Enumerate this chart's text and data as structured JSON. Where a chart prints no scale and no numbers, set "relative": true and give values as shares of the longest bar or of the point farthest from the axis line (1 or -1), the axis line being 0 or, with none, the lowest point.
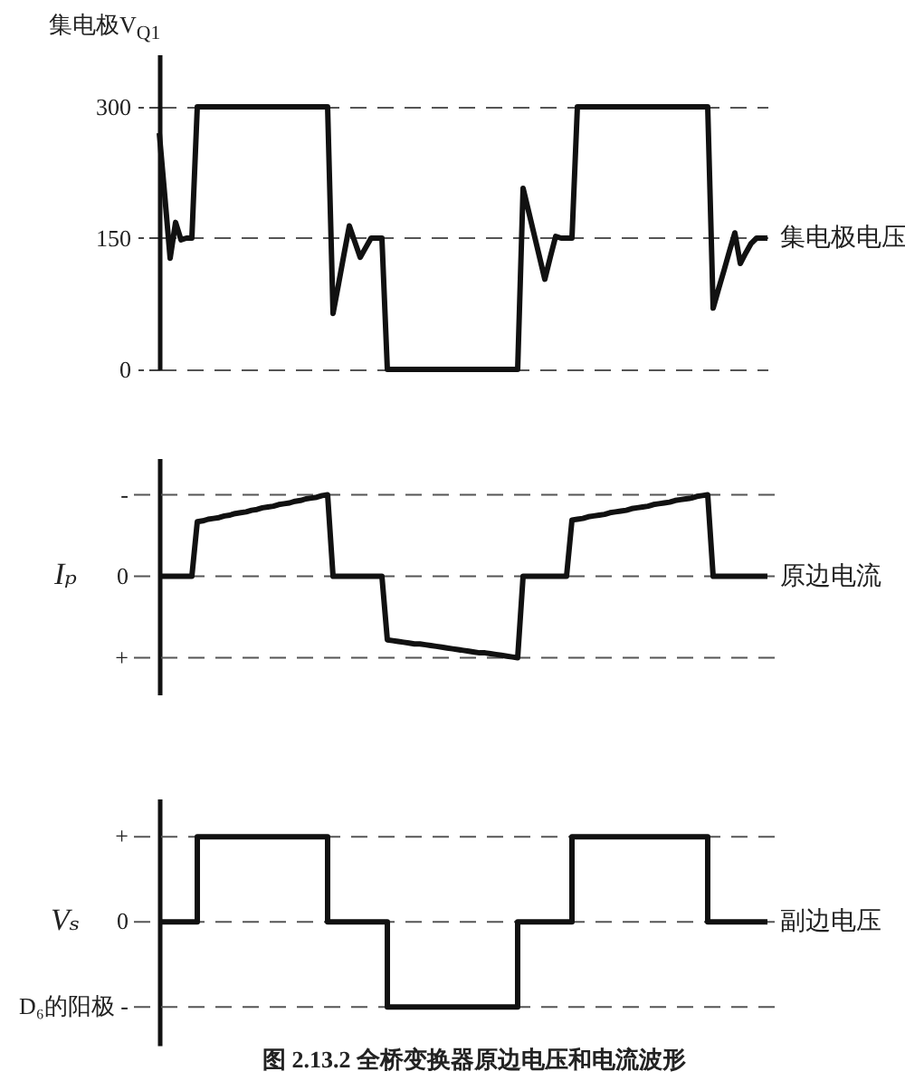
{
  "chart_data": [
    {
      "type": "line",
      "ylabel": "集电极V$_{Q1}$",
      "categories": [
        null,
        null,
        null,
        null,
        null,
        null,
        null,
        null,
        null,
        null,
        null,
        null,
        null,
        null,
        null,
        null,
        null,
        null,
        null,
        null,
        null,
        null,
        null,
        null,
        null,
        null,
        null,
        null,
        null,
        null,
        null,
        null,
        null,
        null,
        null,
        null,
        null,
        null,
        null,
        null,
        null,
        null,
        null,
        null,
        null,
        null,
        null,
        null,
        null,
        null,
        null,
        null,
        null,
        null,
        null,
        null,
        null,
        null,
        null,
        null,
        null,
        null,
        null,
        null,
        null,
        null,
        null,
        null,
        null,
        null,
        null,
        null,
        null,
        null,
        null,
        null,
        null,
        null,
        null,
        null,
        null,
        null,
        null,
        null,
        null,
        null,
        null,
        null,
        null,
        null,
        null,
        null,
        null,
        null,
        null,
        null,
        null,
        null,
        null,
        null,
        null,
        null,
        null,
        null,
        null,
        null,
        null,
        null,
        null,
        null,
        null,
        null,
        null
      ],
      "series": [
        {
          "name": "集电极电压",
          "color": "#111111",
          "values": [
            270,
            199,
            127,
            168,
            148,
            150,
            150,
            300,
            300,
            300,
            300,
            300,
            300,
            300,
            300,
            300,
            300,
            300,
            300,
            300,
            300,
            300,
            300,
            300,
            300,
            300,
            300,
            300,
            300,
            300,
            300,
            300,
            64,
            97,
            131,
            164,
            146,
            128,
            139,
            150,
            150,
            150,
            0,
            0,
            0,
            0,
            0,
            0,
            0,
            0,
            0,
            0,
            0,
            0,
            0,
            0,
            0,
            0,
            0,
            0,
            0,
            0,
            0,
            0,
            0,
            0,
            0,
            207,
            181,
            155,
            129,
            103,
            128,
            152,
            150,
            150,
            150,
            300,
            300,
            300,
            300,
            300,
            300,
            300,
            300,
            300,
            300,
            300,
            300,
            300,
            300,
            300,
            300,
            300,
            300,
            300,
            300,
            300,
            300,
            300,
            300,
            300,
            70,
            92,
            113,
            135,
            156,
            121,
            133,
            144,
            150,
            150,
            150
          ]
        }
      ],
      "ylim": [
        0,
        360
      ],
      "yticks": [
        0,
        150,
        300
      ],
      "grid": "y",
      "tick_labels": "y"
    },
    {
      "type": "line",
      "relative": true,
      "ylabel": "Iₚ",
      "categories": [
        null,
        null,
        null,
        null,
        null,
        null,
        null,
        null,
        null,
        null,
        null,
        null,
        null,
        null,
        null,
        null,
        null,
        null,
        null,
        null,
        null,
        null,
        null,
        null,
        null,
        null,
        null,
        null,
        null,
        null,
        null,
        null,
        null,
        null,
        null,
        null,
        null,
        null,
        null,
        null,
        null,
        null,
        null,
        null,
        null,
        null,
        null,
        null,
        null,
        null,
        null,
        null,
        null,
        null,
        null,
        null,
        null,
        null,
        null,
        null,
        null,
        null,
        null,
        null,
        null,
        null,
        null,
        null,
        null,
        null,
        null,
        null,
        null,
        null,
        null,
        null,
        null,
        null,
        null,
        null,
        null,
        null,
        null,
        null,
        null,
        null,
        null,
        null,
        null,
        null,
        null,
        null,
        null,
        null,
        null,
        null,
        null,
        null,
        null,
        null,
        null,
        null,
        null,
        null,
        null,
        null,
        null,
        null,
        null,
        null,
        null,
        null,
        null
      ],
      "series": [
        {
          "name": "原边电流",
          "color": "#111111",
          "values": [
            0,
            0,
            0,
            0,
            0,
            0,
            0,
            0.67,
            0.68,
            0.7,
            0.71,
            0.72,
            0.74,
            0.75,
            0.77,
            0.78,
            0.79,
            0.81,
            0.82,
            0.84,
            0.85,
            0.86,
            0.88,
            0.89,
            0.9,
            0.92,
            0.93,
            0.95,
            0.96,
            0.97,
            0.99,
            1,
            0,
            0,
            0,
            0,
            0,
            0,
            0,
            0,
            0,
            0,
            -0.78,
            -0.79,
            -0.8,
            -0.81,
            -0.82,
            -0.83,
            -0.83,
            -0.84,
            -0.85,
            -0.86,
            -0.87,
            -0.88,
            -0.89,
            -0.9,
            -0.91,
            -0.92,
            -0.93,
            -0.94,
            -0.94,
            -0.95,
            -0.96,
            -0.97,
            -0.98,
            -0.99,
            -1,
            0,
            0,
            0,
            0,
            0,
            0,
            0,
            0,
            0,
            0.69,
            0.7,
            0.71,
            0.73,
            0.74,
            0.75,
            0.76,
            0.78,
            0.79,
            0.8,
            0.81,
            0.83,
            0.84,
            0.85,
            0.86,
            0.88,
            0.89,
            0.9,
            0.91,
            0.93,
            0.94,
            0.95,
            0.96,
            0.98,
            0.99,
            1,
            0,
            0,
            0,
            0,
            0,
            0,
            0,
            0,
            0,
            0,
            0
          ]
        }
      ],
      "ref_lines": [
        {
          "axis": "y",
          "value": 1,
          "label": "-",
          "line_style": "dashed"
        },
        {
          "axis": "y",
          "value": 0,
          "label": "0",
          "line_style": "dashed"
        },
        {
          "axis": "y",
          "value": -1,
          "label": "+",
          "line_style": "dashed"
        }
      ]
    },
    {
      "type": "step",
      "relative": true,
      "ylabel": "Vₛ",
      "categories": [
        null,
        null,
        null,
        null,
        null,
        null,
        null,
        null,
        null,
        null,
        null,
        null,
        null,
        null,
        null,
        null,
        null,
        null,
        null,
        null,
        null,
        null,
        null,
        null,
        null,
        null,
        null,
        null,
        null,
        null,
        null,
        null,
        null,
        null,
        null,
        null,
        null,
        null,
        null,
        null,
        null,
        null,
        null,
        null,
        null,
        null,
        null,
        null,
        null,
        null,
        null,
        null,
        null,
        null,
        null,
        null,
        null,
        null,
        null,
        null,
        null,
        null,
        null,
        null,
        null,
        null,
        null,
        null,
        null,
        null,
        null,
        null,
        null,
        null,
        null,
        null,
        null,
        null,
        null,
        null,
        null,
        null,
        null,
        null,
        null,
        null,
        null,
        null,
        null,
        null,
        null,
        null,
        null,
        null,
        null,
        null,
        null,
        null,
        null,
        null,
        null,
        null,
        null,
        null,
        null,
        null,
        null,
        null,
        null,
        null,
        null,
        null,
        null
      ],
      "series": [
        {
          "name": "副边电压",
          "color": "#111111",
          "values": [
            0,
            0,
            0,
            0,
            0,
            0,
            0,
            1,
            1,
            1,
            1,
            1,
            1,
            1,
            1,
            1,
            1,
            1,
            1,
            1,
            1,
            1,
            1,
            1,
            1,
            1,
            1,
            1,
            1,
            1,
            1,
            0,
            0,
            0,
            0,
            0,
            0,
            0,
            0,
            0,
            0,
            0,
            -1,
            -1,
            -1,
            -1,
            -1,
            -1,
            -1,
            -1,
            -1,
            -1,
            -1,
            -1,
            -1,
            -1,
            -1,
            -1,
            -1,
            -1,
            -1,
            -1,
            -1,
            -1,
            -1,
            -1,
            0,
            0,
            0,
            0,
            0,
            0,
            0,
            0,
            0,
            0,
            1,
            1,
            1,
            1,
            1,
            1,
            1,
            1,
            1,
            1,
            1,
            1,
            1,
            1,
            1,
            1,
            1,
            1,
            1,
            1,
            1,
            1,
            1,
            1,
            1,
            0,
            0,
            0,
            0,
            0,
            0,
            0,
            0,
            0,
            0,
            0,
            0
          ]
        }
      ],
      "ref_lines": [
        {
          "axis": "y",
          "value": 1,
          "label": "+",
          "line_style": "dashed"
        },
        {
          "axis": "y",
          "value": 0,
          "label": "0",
          "line_style": "dashed"
        },
        {
          "axis": "y",
          "value": -1,
          "label": "D₆的阳极 -",
          "line_style": "dashed"
        }
      ],
      "annotations": [
        "图 2.13.2 全桥变换器原边电压和电流波形"
      ]
    }
  ]
}
